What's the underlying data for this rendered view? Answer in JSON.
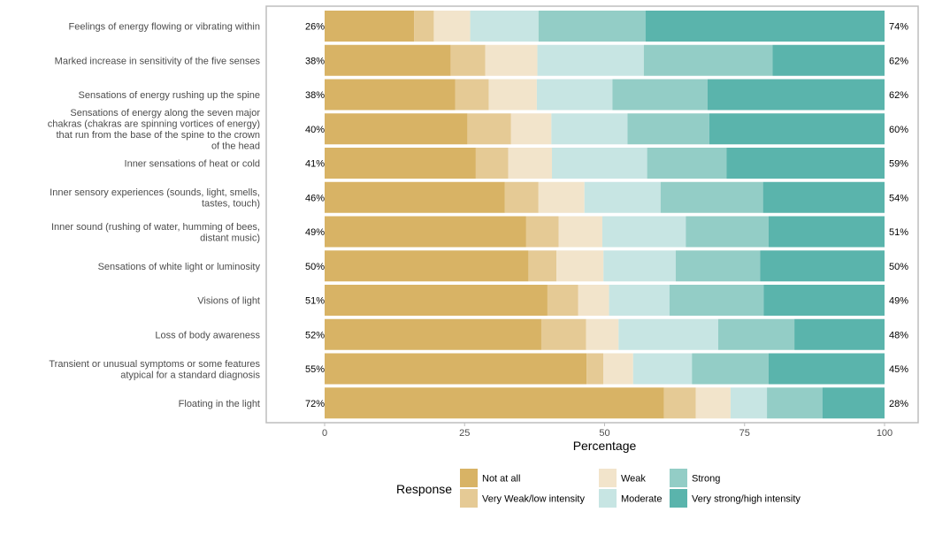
{
  "chart_data": {
    "type": "bar",
    "orientation": "horizontal",
    "stacked": true,
    "xlabel": "Percentage",
    "ylabel": "",
    "xlim": [
      0,
      100
    ],
    "xticks": [
      "0",
      "25",
      "50",
      "75",
      "100"
    ],
    "grid": false,
    "legend_placement": "bottom",
    "legend_title": "Response",
    "categories": [
      "Feelings of energy flowing or vibrating within",
      "Marked increase in sensitivity of the five senses",
      "Sensations of energy rushing up the spine",
      "Sensations of energy along the seven major chakras (chakras are spinning vortices of energy) that run from the base of the spine to the crown of the head",
      "Inner sensations of heat or cold",
      "Inner sensory experiences (sounds, light, smells, tastes, touch)",
      "Inner sound (rushing of water, humming of bees, distant music)",
      "Sensations of white light or luminosity",
      "Visions of light",
      "Loss of body awareness",
      "Transient or unusual symptoms or some features atypical for a standard diagnosis",
      "Floating in the light"
    ],
    "category_lines": [
      [
        "Feelings of energy flowing or vibrating within"
      ],
      [
        "Marked increase in sensitivity of the five senses"
      ],
      [
        "Sensations of energy rushing up the spine"
      ],
      [
        "Sensations of energy along the seven major",
        "chakras (chakras are spinning vortices of energy)",
        "that run from the base of the spine to the crown",
        "of the head"
      ],
      [
        "Inner sensations of heat or cold"
      ],
      [
        "Inner sensory experiences (sounds, light, smells,",
        "tastes, touch)"
      ],
      [
        "Inner sound (rushing of water, humming of bees,",
        "distant music)"
      ],
      [
        "Sensations of white light or luminosity"
      ],
      [
        "Visions of light"
      ],
      [
        "Loss of body awareness"
      ],
      [
        "Transient or unusual symptoms or some features",
        "atypical for a standard diagnosis"
      ],
      [
        "Floating in the light"
      ]
    ],
    "series": [
      {
        "name": "Not at all",
        "color": "#d8b365",
        "values": [
          16,
          22.5,
          23.3,
          25.5,
          27,
          32.2,
          36,
          36.4,
          39.8,
          38.7,
          46.8,
          60.6
        ]
      },
      {
        "name": "Very Weak/low intensity",
        "color": "#e5ca95",
        "values": [
          3.5,
          6.2,
          6,
          7.8,
          5.8,
          6,
          5.8,
          5,
          5.5,
          8,
          3,
          5.7
        ]
      },
      {
        "name": "Weak",
        "color": "#f2e4cb",
        "values": [
          6.5,
          9.3,
          8.6,
          7.2,
          7.8,
          8.2,
          7.8,
          8.4,
          5.5,
          5.8,
          5.3,
          6.2
        ]
      },
      {
        "name": "Moderate",
        "color": "#c7e5e3",
        "values": [
          12.2,
          19,
          13.5,
          13.6,
          17,
          13.6,
          14.9,
          12.9,
          10.8,
          17.8,
          10.5,
          6.5
        ]
      },
      {
        "name": "Strong",
        "color": "#93cdc6",
        "values": [
          19.1,
          23,
          17,
          14.6,
          14.2,
          18.3,
          14.8,
          15.1,
          16.8,
          13.6,
          13.7,
          9.9
        ]
      },
      {
        "name": "Very strong/high intensity",
        "color": "#5ab4ac",
        "values": [
          42.7,
          20,
          31.6,
          31.3,
          28.2,
          21.7,
          20.7,
          22.2,
          21.6,
          16.1,
          20.7,
          11.1
        ]
      }
    ],
    "left_labels": [
      "26%",
      "38%",
      "38%",
      "40%",
      "41%",
      "46%",
      "49%",
      "50%",
      "51%",
      "52%",
      "55%",
      "72%"
    ],
    "right_labels": [
      "74%",
      "62%",
      "62%",
      "60%",
      "59%",
      "54%",
      "51%",
      "50%",
      "49%",
      "48%",
      "45%",
      "28%"
    ]
  }
}
